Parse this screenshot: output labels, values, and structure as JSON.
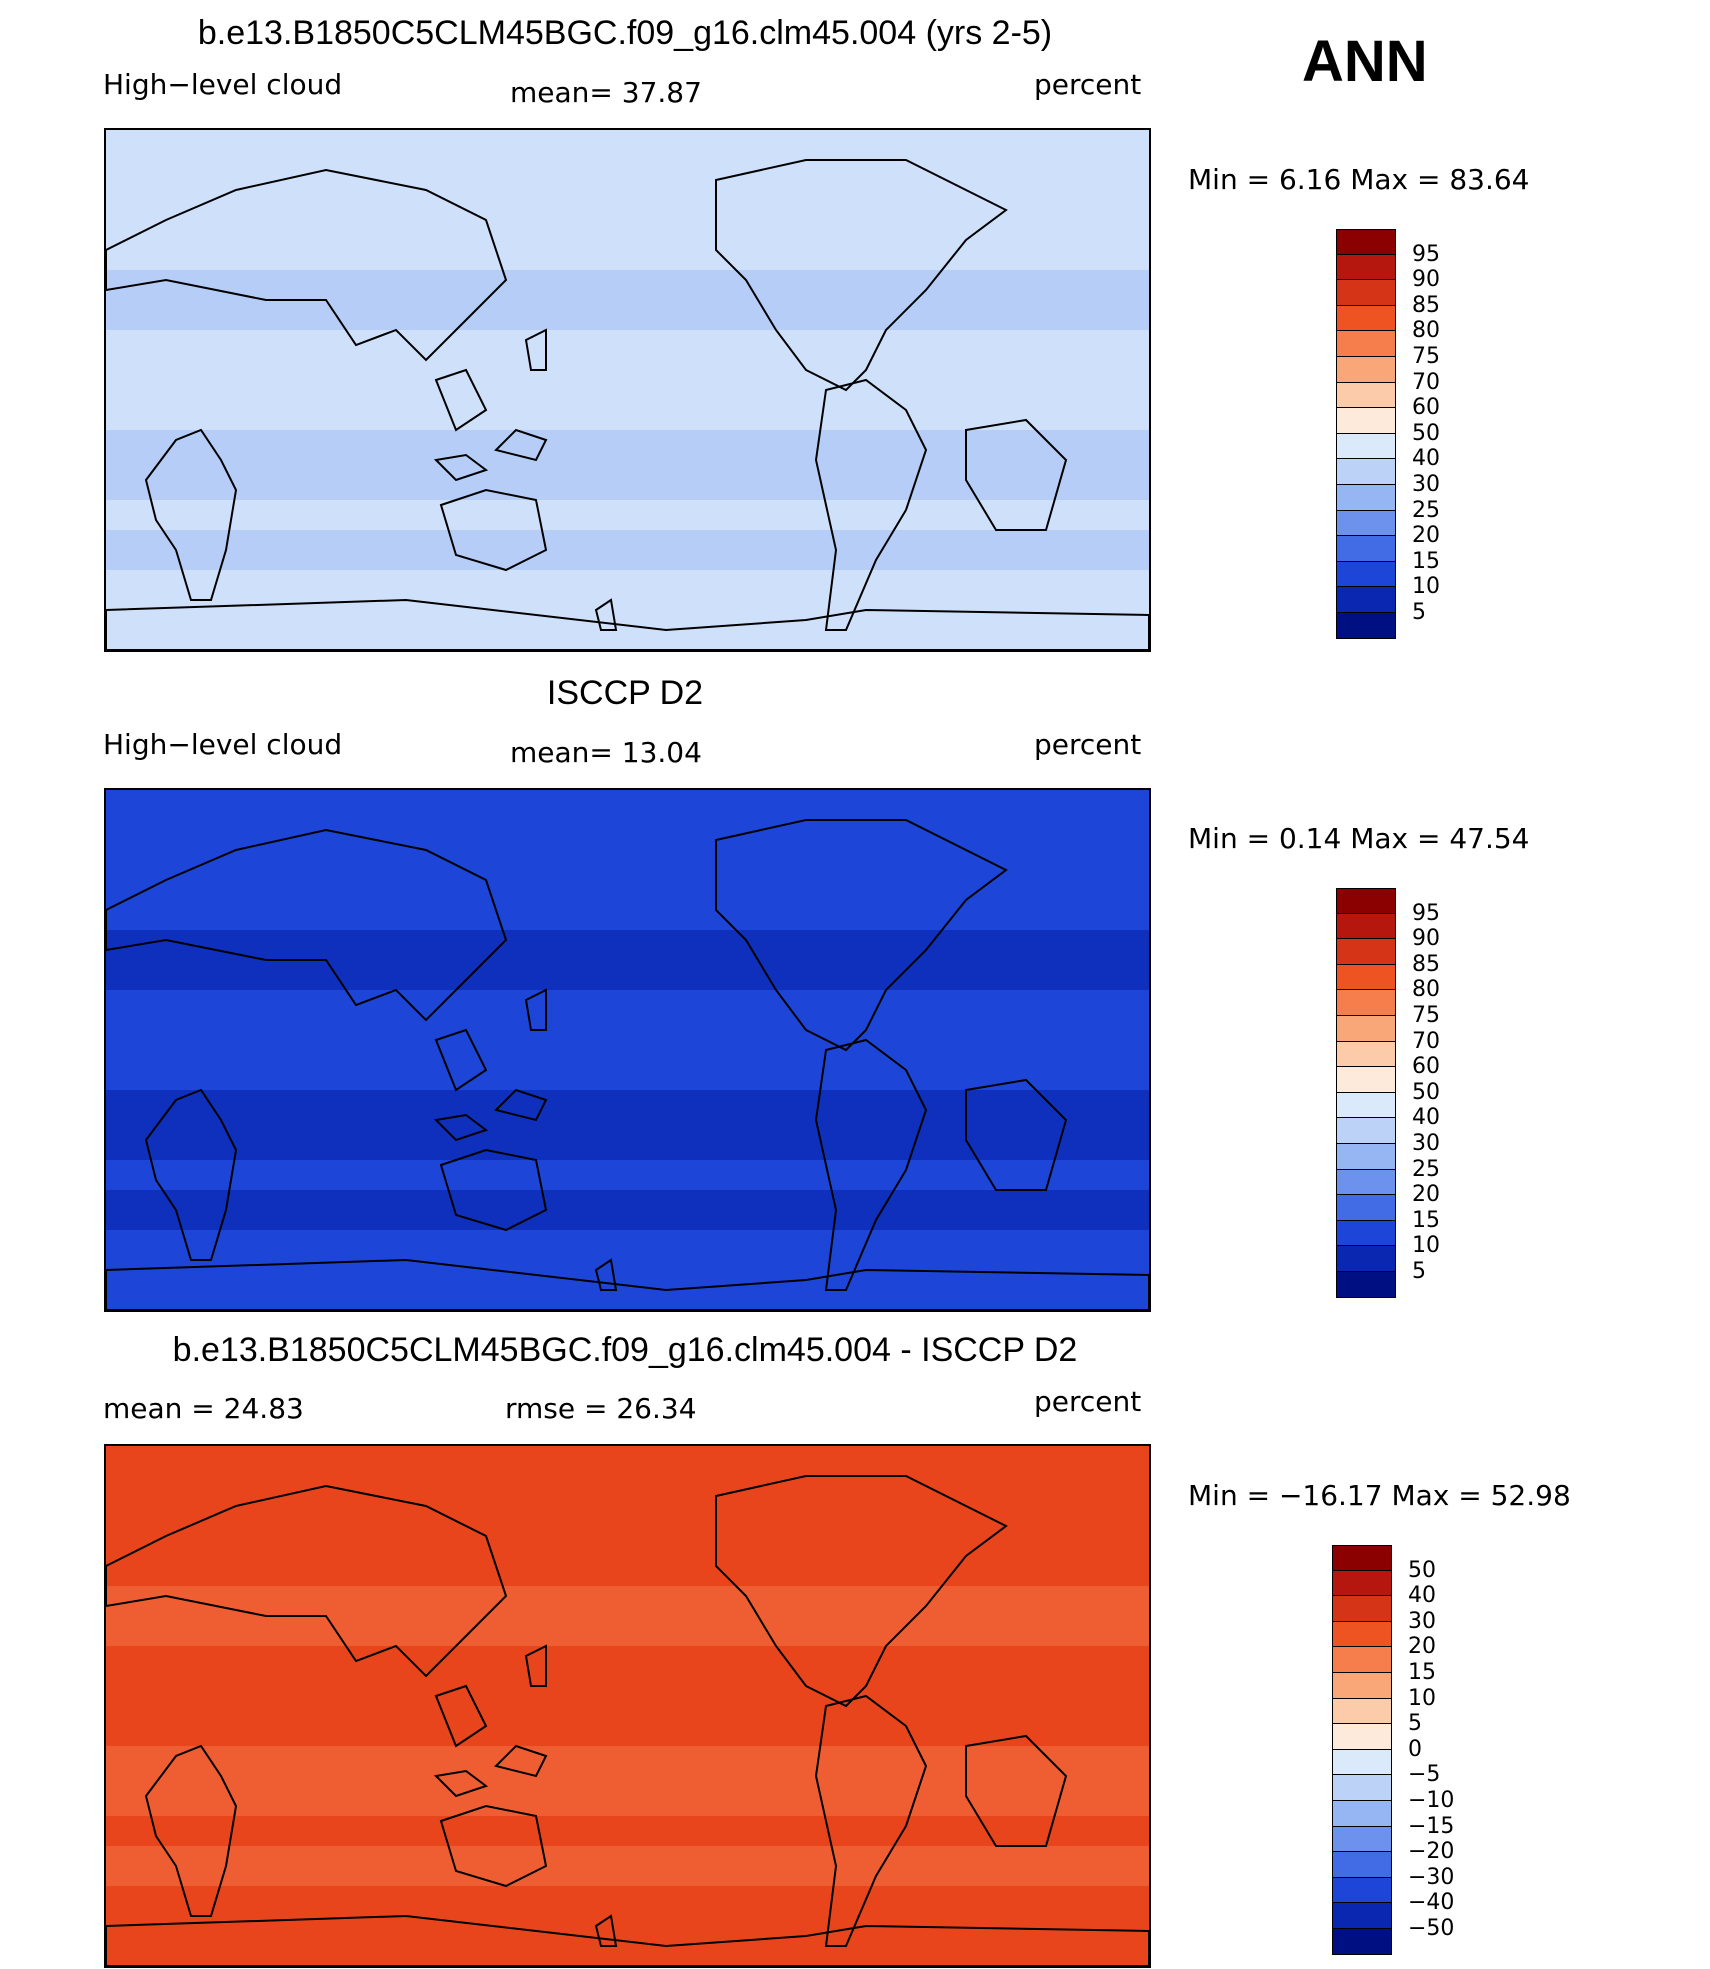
{
  "season": "ANN",
  "panels": [
    {
      "title": "b.e13.B1850C5CLM45BGC.f09_g16.clm45.004 (yrs 2-5)",
      "left_label": "High−level cloud",
      "center_label": "mean=   37.87",
      "right_label": "percent",
      "minmax": "Min =    6.16  Max =   83.64",
      "colorbar_ticks": [
        "95",
        "90",
        "85",
        "80",
        "75",
        "70",
        "60",
        "50",
        "40",
        "30",
        "25",
        "20",
        "15",
        "10",
        "5"
      ],
      "colors": [
        "#8b0000",
        "#b5170f",
        "#d63416",
        "#ee5422",
        "#f67e4c",
        "#f9a678",
        "#fccbaa",
        "#feeadb",
        "#dbeafb",
        "#bcd2f7",
        "#95b5f3",
        "#6d92ee",
        "#426ce6",
        "#1d46d8",
        "#0a27b2",
        "#001082"
      ],
      "fill": [
        "#cfe0fa",
        "#a9c5f5"
      ]
    },
    {
      "title": "ISCCP D2",
      "left_label": "High−level cloud",
      "center_label": "mean=   13.04",
      "right_label": "percent",
      "minmax": "Min =    0.14  Max =   47.54",
      "colorbar_ticks": [
        "95",
        "90",
        "85",
        "80",
        "75",
        "70",
        "60",
        "50",
        "40",
        "30",
        "25",
        "20",
        "15",
        "10",
        "5"
      ],
      "colors": [
        "#8b0000",
        "#b5170f",
        "#d63416",
        "#ee5422",
        "#f67e4c",
        "#f9a678",
        "#fccbaa",
        "#feeadb",
        "#dbeafb",
        "#bcd2f7",
        "#95b5f3",
        "#6d92ee",
        "#426ce6",
        "#1d46d8",
        "#0a27b2",
        "#001082"
      ],
      "fill": [
        "#1d46d8",
        "#0a27b2"
      ]
    },
    {
      "title": "b.e13.B1850C5CLM45BGC.f09_g16.clm45.004 - ISCCP D2",
      "left_label": "mean =   24.83",
      "center_label": "rmse =   26.34",
      "right_label": "percent",
      "minmax": "Min = −16.17  Max =   52.98",
      "colorbar_ticks": [
        "50",
        "40",
        "30",
        "20",
        "15",
        "10",
        "5",
        "0",
        "−5",
        "−10",
        "−15",
        "−20",
        "−30",
        "−40",
        "−50"
      ],
      "colors": [
        "#8b0000",
        "#b5170f",
        "#d63416",
        "#ee5422",
        "#f67e4c",
        "#f9a678",
        "#fccbaa",
        "#feeadb",
        "#dbeafb",
        "#bcd2f7",
        "#95b5f3",
        "#6d92ee",
        "#426ce6",
        "#1d46d8",
        "#0a27b2",
        "#001082"
      ],
      "fill": [
        "#e8451c",
        "#f26a3c"
      ]
    }
  ]
}
